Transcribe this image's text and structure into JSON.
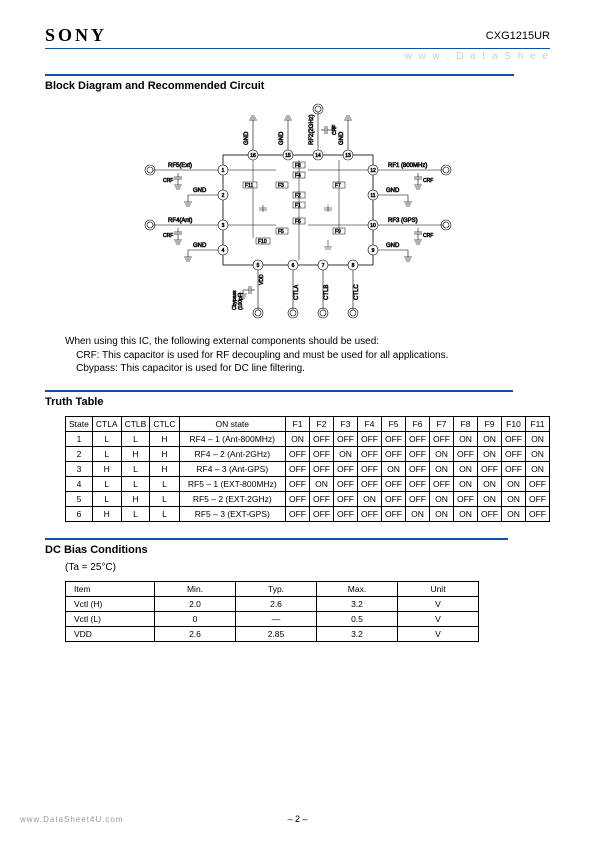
{
  "header": {
    "logo": "SONY",
    "part_number": "CXG1215UR",
    "watermark": "w w w .  D a t a S h e e"
  },
  "block_diagram": {
    "title": "Block Diagram and Recommended Circuit",
    "pins": {
      "left": [
        {
          "num": "1",
          "label": "RF5(Ext)",
          "cap": "CRF"
        },
        {
          "num": "2",
          "label": "GND"
        },
        {
          "num": "3",
          "label": "RF4(Ant)",
          "cap": "CRF"
        },
        {
          "num": "4",
          "label": "GND"
        }
      ],
      "right": [
        {
          "num": "12",
          "label": "RF1 (800MHz)",
          "cap": "CRF"
        },
        {
          "num": "11",
          "label": "GND"
        },
        {
          "num": "10",
          "label": "RF3 (GPS)",
          "cap": "CRF"
        },
        {
          "num": "9",
          "label": "GND"
        }
      ],
      "top": [
        {
          "num": "16",
          "label": "GND"
        },
        {
          "num": "15",
          "label": "GND"
        },
        {
          "num": "14",
          "label": "RF2(2GHz)",
          "cap": "CRF"
        },
        {
          "num": "13",
          "label": "GND"
        }
      ],
      "bottom": [
        {
          "num": "5",
          "label": "Cbypass (100pF)",
          "sub": "VDD"
        },
        {
          "num": "6",
          "label": "CTLA"
        },
        {
          "num": "7",
          "label": "CTLB"
        },
        {
          "num": "8",
          "label": "CTLC"
        }
      ]
    },
    "switches": [
      "F1",
      "F2",
      "F3",
      "F4",
      "F5",
      "F6",
      "F7",
      "F8",
      "F9",
      "F10",
      "F11"
    ],
    "note_intro": "When using this IC, the following external components should be used:",
    "note_crf": "CRF: This capacitor is used for RF decoupling and must be used for all applications.",
    "note_cbypass": "Cbypass: This capacitor is used for DC line filtering."
  },
  "truth_table": {
    "title": "Truth Table",
    "columns": [
      "State",
      "CTLA",
      "CTLB",
      "CTLC",
      "ON state",
      "F1",
      "F2",
      "F3",
      "F4",
      "F5",
      "F6",
      "F7",
      "F8",
      "F9",
      "F10",
      "F11"
    ],
    "rows": [
      [
        "1",
        "L",
        "L",
        "H",
        "RF4 – 1 (Ant-800MHz)",
        "ON",
        "OFF",
        "OFF",
        "OFF",
        "OFF",
        "OFF",
        "OFF",
        "ON",
        "ON",
        "OFF",
        "ON"
      ],
      [
        "2",
        "L",
        "H",
        "H",
        "RF4 – 2 (Ant-2GHz)",
        "OFF",
        "OFF",
        "ON",
        "OFF",
        "OFF",
        "OFF",
        "ON",
        "OFF",
        "ON",
        "OFF",
        "ON"
      ],
      [
        "3",
        "H",
        "L",
        "H",
        "RF4 – 3 (Ant-GPS)",
        "OFF",
        "OFF",
        "OFF",
        "OFF",
        "ON",
        "OFF",
        "ON",
        "ON",
        "OFF",
        "OFF",
        "ON"
      ],
      [
        "4",
        "L",
        "L",
        "L",
        "RF5 – 1 (EXT-800MHz)",
        "OFF",
        "ON",
        "OFF",
        "OFF",
        "OFF",
        "OFF",
        "OFF",
        "ON",
        "ON",
        "ON",
        "OFF"
      ],
      [
        "5",
        "L",
        "H",
        "L",
        "RF5 – 2 (EXT-2GHz)",
        "OFF",
        "OFF",
        "OFF",
        "ON",
        "OFF",
        "OFF",
        "ON",
        "OFF",
        "ON",
        "ON",
        "OFF"
      ],
      [
        "6",
        "H",
        "L",
        "L",
        "RF5 – 3 (EXT-GPS)",
        "OFF",
        "OFF",
        "OFF",
        "OFF",
        "OFF",
        "ON",
        "ON",
        "ON",
        "OFF",
        "ON",
        "OFF"
      ]
    ]
  },
  "dc_bias": {
    "title": "DC Bias Conditions",
    "condition": "(Ta = 25°C)",
    "columns": [
      "Item",
      "Min.",
      "Typ.",
      "Max.",
      "Unit"
    ],
    "rows": [
      [
        "Vctl (H)",
        "2.0",
        "2.6",
        "3.2",
        "V"
      ],
      [
        "Vctl (L)",
        "0",
        "—",
        "0.5",
        "V"
      ],
      [
        "VDD",
        "2.6",
        "2.85",
        "3.2",
        "V"
      ]
    ]
  },
  "footer": {
    "page": "– 2 –",
    "url": "www.DataSheet4U.com"
  },
  "colors": {
    "rule": "#1050a0",
    "text": "#000000",
    "watermark": "#cccccc"
  }
}
